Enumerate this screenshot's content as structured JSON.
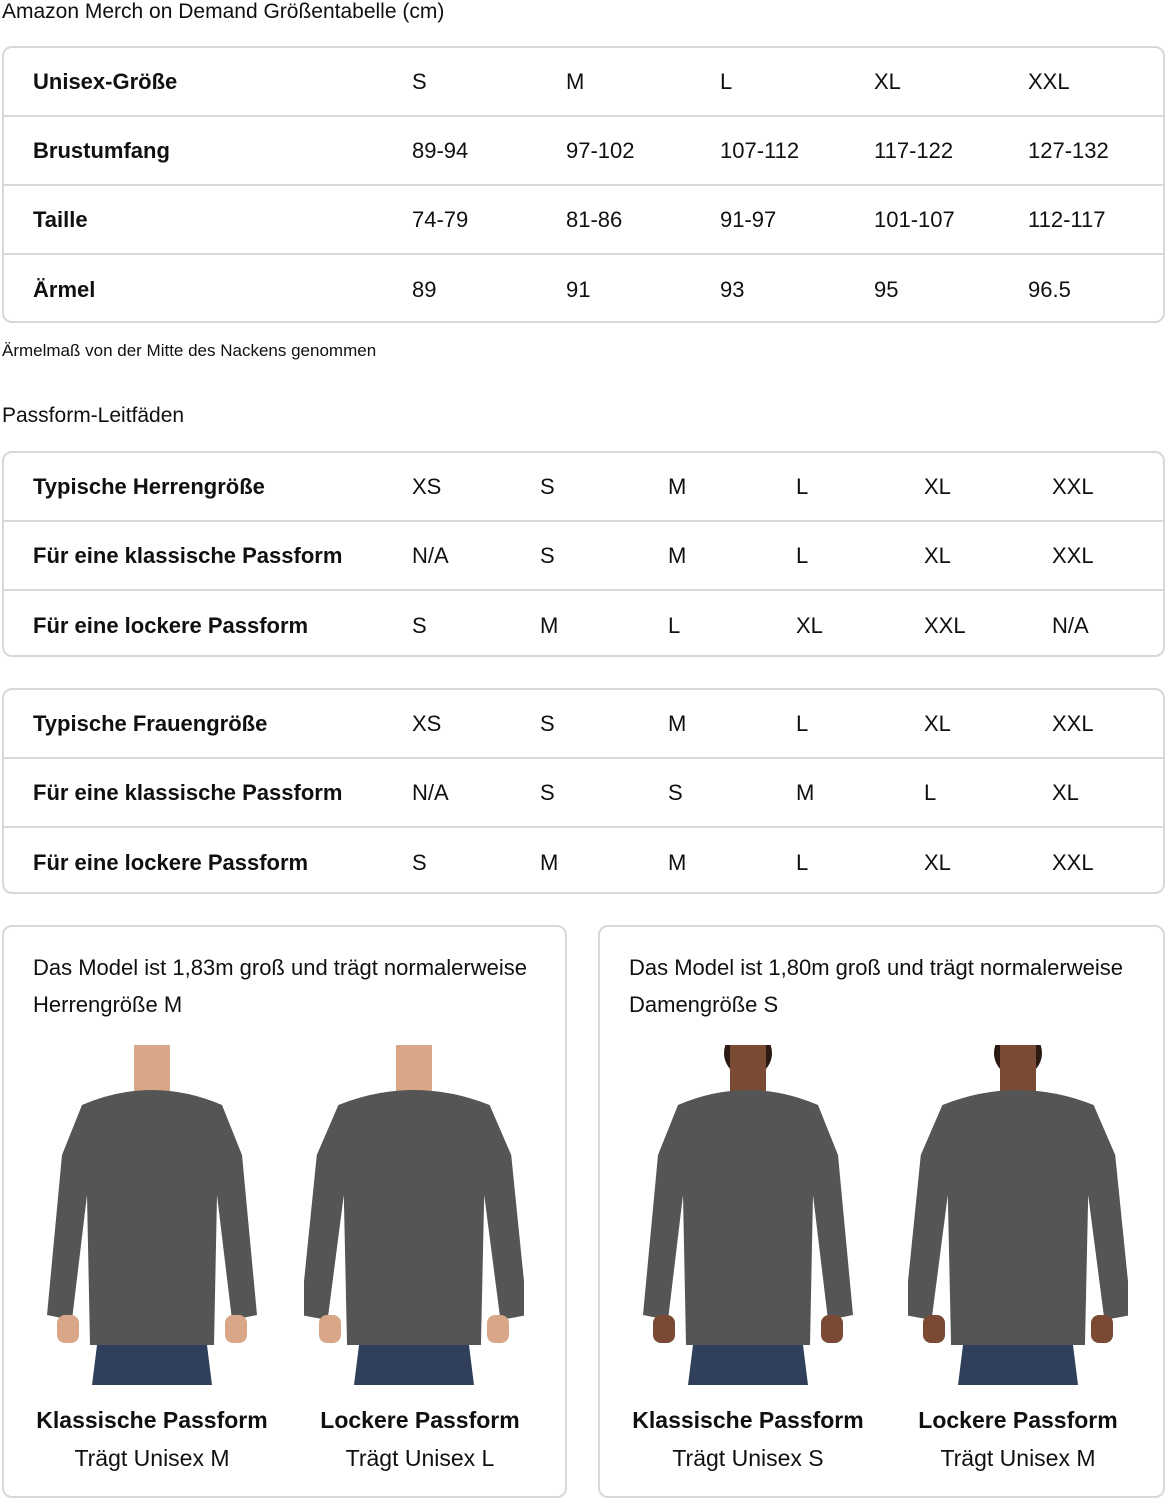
{
  "title": "Amazon Merch on Demand Größentabelle (cm)",
  "unisex_table": {
    "rows": [
      {
        "label": "Unisex-Größe",
        "values": [
          "S",
          "M",
          "L",
          "XL",
          "XXL"
        ]
      },
      {
        "label": "Brustumfang",
        "values": [
          "89-94",
          "97-102",
          "107-112",
          "117-122",
          "127-132"
        ]
      },
      {
        "label": "Taille",
        "values": [
          "74-79",
          "81-86",
          "91-97",
          "101-107",
          "112-117"
        ]
      },
      {
        "label": "Ärmel",
        "values": [
          "89",
          "91",
          "93",
          "95",
          "96.5"
        ]
      }
    ]
  },
  "note": "Ärmelmaß von der Mitte des Nackens genommen",
  "fit_title": "Passform-Leitfäden",
  "men_table": {
    "rows": [
      {
        "label": "Typische Herrengröße",
        "values": [
          "XS",
          "S",
          "M",
          "L",
          "XL",
          "XXL"
        ]
      },
      {
        "label": "Für eine klassische Passform",
        "values": [
          "N/A",
          "S",
          "M",
          "L",
          "XL",
          "XXL"
        ]
      },
      {
        "label": "Für eine lockere Passform",
        "values": [
          "S",
          "M",
          "L",
          "XL",
          "XXL",
          "N/A"
        ]
      }
    ]
  },
  "women_table": {
    "rows": [
      {
        "label": "Typische Frauengröße",
        "values": [
          "XS",
          "S",
          "M",
          "L",
          "XL",
          "XXL"
        ]
      },
      {
        "label": "Für eine klassische Passform",
        "values": [
          "N/A",
          "S",
          "S",
          "M",
          "L",
          "XL"
        ]
      },
      {
        "label": "Für eine lockere Passform",
        "values": [
          "S",
          "M",
          "M",
          "L",
          "XL",
          "XXL"
        ]
      }
    ]
  },
  "cards": [
    {
      "desc": "Das Model ist 1,83m groß und trägt normalerweise Herrengröße M",
      "models": [
        {
          "fit": "Klassische Passform",
          "wears": "Trägt Unisex M"
        },
        {
          "fit": "Lockere Passform",
          "wears": "Trägt Unisex L"
        }
      ]
    },
    {
      "desc": "Das Model ist 1,80m groß und trägt normalerweise Damengröße S",
      "models": [
        {
          "fit": "Klassische Passform",
          "wears": "Trägt Unisex S"
        },
        {
          "fit": "Lockere Passform",
          "wears": "Trägt Unisex M"
        }
      ]
    }
  ],
  "colors": {
    "border": "#d5d9d9",
    "sweatshirt": "#555556",
    "jeans": "#2f3f5c",
    "skin_m": "#d9a788",
    "skin_w": "#7a4a34"
  }
}
